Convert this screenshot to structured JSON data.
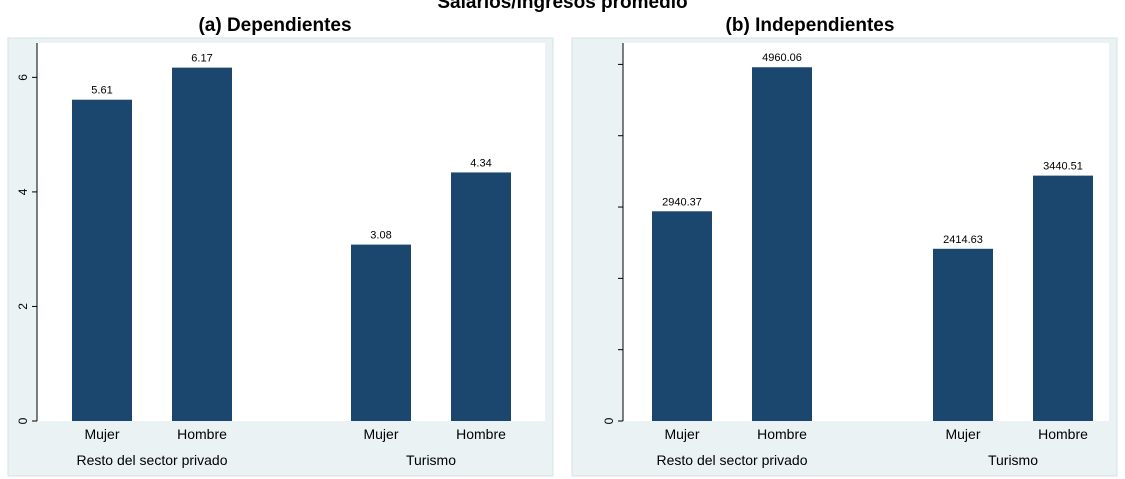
{
  "title": "Salarios/Ingresos promedio",
  "chart_data": [
    {
      "type": "bar",
      "title": "(a) Dependientes",
      "groups": [
        "Resto del sector privado",
        "Turismo"
      ],
      "categories": [
        "Mujer",
        "Hombre"
      ],
      "series": [
        {
          "group": "Resto del sector privado",
          "values": [
            5.61,
            6.17
          ],
          "labels": [
            "5.61",
            "6.17"
          ]
        },
        {
          "group": "Turismo",
          "values": [
            3.08,
            4.34
          ],
          "labels": [
            "3.08",
            "4.34"
          ]
        }
      ],
      "ylim": [
        0,
        6.6
      ],
      "yticks": [
        0,
        2,
        4,
        6
      ],
      "ytick_labels": [
        "0",
        "2",
        "4",
        "6"
      ],
      "bar_color": "#1b466e"
    },
    {
      "type": "bar",
      "title": "(b) Independientes",
      "groups": [
        "Resto del sector privado",
        "Turismo"
      ],
      "categories": [
        "Mujer",
        "Hombre"
      ],
      "series": [
        {
          "group": "Resto del sector privado",
          "values": [
            2940.37,
            4960.06
          ],
          "labels": [
            "2940.37",
            "4960.06"
          ]
        },
        {
          "group": "Turismo",
          "values": [
            2414.63,
            3440.51
          ],
          "labels": [
            "2414.63",
            "3440.51"
          ]
        }
      ],
      "ylim": [
        0,
        5300
      ],
      "yticks": [
        0,
        1000,
        2000,
        3000,
        4000,
        5000
      ],
      "ytick_labels": [
        "0",
        "",
        "",
        "",
        "",
        ""
      ],
      "bar_color": "#1b466e"
    }
  ]
}
